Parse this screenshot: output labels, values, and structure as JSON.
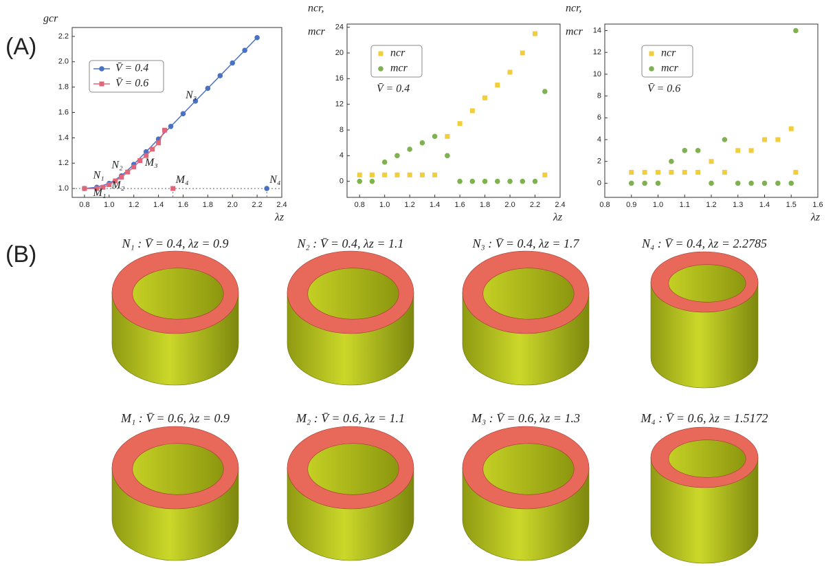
{
  "panel_labels": [
    "(A)",
    "(B)"
  ],
  "chart_data": [
    {
      "type": "line",
      "ylabel": "gcr",
      "xlabel": "λz",
      "xlim": [
        0.7,
        2.4
      ],
      "xticks": [
        0.8,
        {
          "value": 1,
          "label": "1.0"
        },
        1.2,
        1.4,
        1.6,
        1.8,
        {
          "value": 2,
          "label": "2.0"
        },
        2.2,
        2.4
      ],
      "ylim": [
        0.93,
        2.27
      ],
      "yticks": [
        {
          "value": 1,
          "label": "1.0"
        },
        1.2,
        1.4,
        1.6,
        1.8,
        {
          "value": 2,
          "label": "2.0"
        },
        2.2
      ],
      "hline": 1,
      "series": [
        {
          "name": "V̄ = 0.4",
          "color": "#4a72c4",
          "marker": "circle",
          "x": [
            0.8,
            0.9,
            1.0,
            1.1,
            1.2,
            1.3,
            1.4,
            1.5,
            1.6,
            1.7,
            1.8,
            1.9,
            2.0,
            2.1,
            2.2
          ],
          "values": [
            1.0,
            1.01,
            1.04,
            1.1,
            1.19,
            1.29,
            1.39,
            1.49,
            1.59,
            1.69,
            1.79,
            1.89,
            1.99,
            2.09,
            2.19
          ]
        },
        {
          "name": "V̄ = 0.6",
          "color": "#e0677a",
          "marker": "square",
          "x": [
            0.8,
            0.9,
            0.95,
            1.0,
            1.05,
            1.1,
            1.15,
            1.2,
            1.25,
            1.3,
            1.35,
            1.4,
            1.45
          ],
          "values": [
            1.0,
            1.0,
            1.01,
            1.03,
            1.06,
            1.09,
            1.13,
            1.17,
            1.22,
            1.26,
            1.31,
            1.36,
            1.46
          ]
        }
      ],
      "markers": [
        {
          "label": "N₄",
          "x": 2.2785,
          "y": 1.0,
          "color": "#4a72c4",
          "marker": "circle"
        },
        {
          "label": "M₄",
          "x": 1.5172,
          "y": 1.0,
          "color": "#e0677a",
          "marker": "square"
        }
      ],
      "annotations": [
        {
          "text": "N₁",
          "x": 0.87,
          "y": 1.1
        },
        {
          "text": "M₁",
          "x": 0.87,
          "y": 0.96
        },
        {
          "text": "N₂",
          "x": 1.02,
          "y": 1.18
        },
        {
          "text": "M₂",
          "x": 1.02,
          "y": 1.02
        },
        {
          "text": "N₃",
          "x": 1.62,
          "y": 1.73
        },
        {
          "text": "M₃",
          "x": 1.29,
          "y": 1.2
        }
      ]
    },
    {
      "type": "scatter",
      "ylabel": [
        "ncr,",
        "mcr"
      ],
      "xlabel": "λz",
      "xlim": [
        0.7,
        2.4
      ],
      "xticks": [
        0.8,
        {
          "value": 1,
          "label": "1.0"
        },
        1.2,
        1.4,
        1.6,
        1.8,
        {
          "value": 2,
          "label": "2.0"
        },
        2.2,
        2.4
      ],
      "ylim": [
        -2.5,
        24.5
      ],
      "yticks": [
        0,
        4,
        8,
        12,
        16,
        20,
        24
      ],
      "annotation": "V̄ = 0.4",
      "x": [
        0.8,
        0.9,
        1.0,
        1.1,
        1.2,
        1.3,
        1.4,
        1.5,
        1.6,
        1.7,
        1.8,
        1.9,
        2.0,
        2.1,
        2.2,
        2.2785
      ],
      "series": [
        {
          "name": "ncr",
          "color": "#f2cd3c",
          "marker": "square",
          "values": [
            1,
            1,
            1,
            1,
            1,
            1,
            1,
            7,
            9,
            11,
            13,
            15,
            17,
            20,
            23,
            1
          ]
        },
        {
          "name": "mcr",
          "color": "#7fb24e",
          "marker": "circle",
          "values": [
            0,
            0,
            3,
            4,
            5,
            6,
            7,
            4,
            0,
            0,
            0,
            0,
            0,
            0,
            0,
            14
          ]
        }
      ]
    },
    {
      "type": "scatter",
      "ylabel": [
        "ncr,",
        "mcr"
      ],
      "xlabel": "λz",
      "xlim": [
        0.8,
        1.6
      ],
      "xticks": [
        0.8,
        0.9,
        {
          "value": 1,
          "label": "1.0"
        },
        1.1,
        1.2,
        1.3,
        1.4,
        1.5,
        1.6
      ],
      "ylim": [
        -1.3,
        14.6
      ],
      "yticks": [
        0,
        2,
        4,
        6,
        8,
        10,
        12,
        14
      ],
      "annotation": "V̄ = 0.6",
      "x": [
        0.9,
        0.95,
        1.0,
        1.05,
        1.1,
        1.15,
        1.2,
        1.25,
        1.3,
        1.35,
        1.4,
        1.45,
        1.5,
        1.5172
      ],
      "series": [
        {
          "name": "ncr",
          "color": "#f2cd3c",
          "marker": "square",
          "values": [
            1,
            1,
            1,
            1,
            1,
            1,
            2,
            1,
            3,
            3,
            4,
            4,
            5,
            1
          ]
        },
        {
          "name": "mcr",
          "color": "#7fb24e",
          "marker": "circle",
          "values": [
            0,
            0,
            0,
            2,
            3,
            3,
            0,
            4,
            0,
            0,
            0,
            0,
            0,
            14
          ]
        }
      ]
    }
  ],
  "captions": [
    "N₁ : V̄ = 0.4,  λz = 0.9",
    "N₂ : V̄ = 0.4,  λz = 1.1",
    "N₃ : V̄ = 0.4,  λz = 1.7",
    "N₄ : V̄ = 0.4,  λz = 2.2785",
    "M₁ : V̄ = 0.6,  λz = 0.9",
    "M₂ : V̄ = 0.6,  λz = 1.1",
    "M₃ : V̄ = 0.6,  λz = 1.3",
    "M₄ : V̄ = 0.6,  λz = 1.5172"
  ]
}
